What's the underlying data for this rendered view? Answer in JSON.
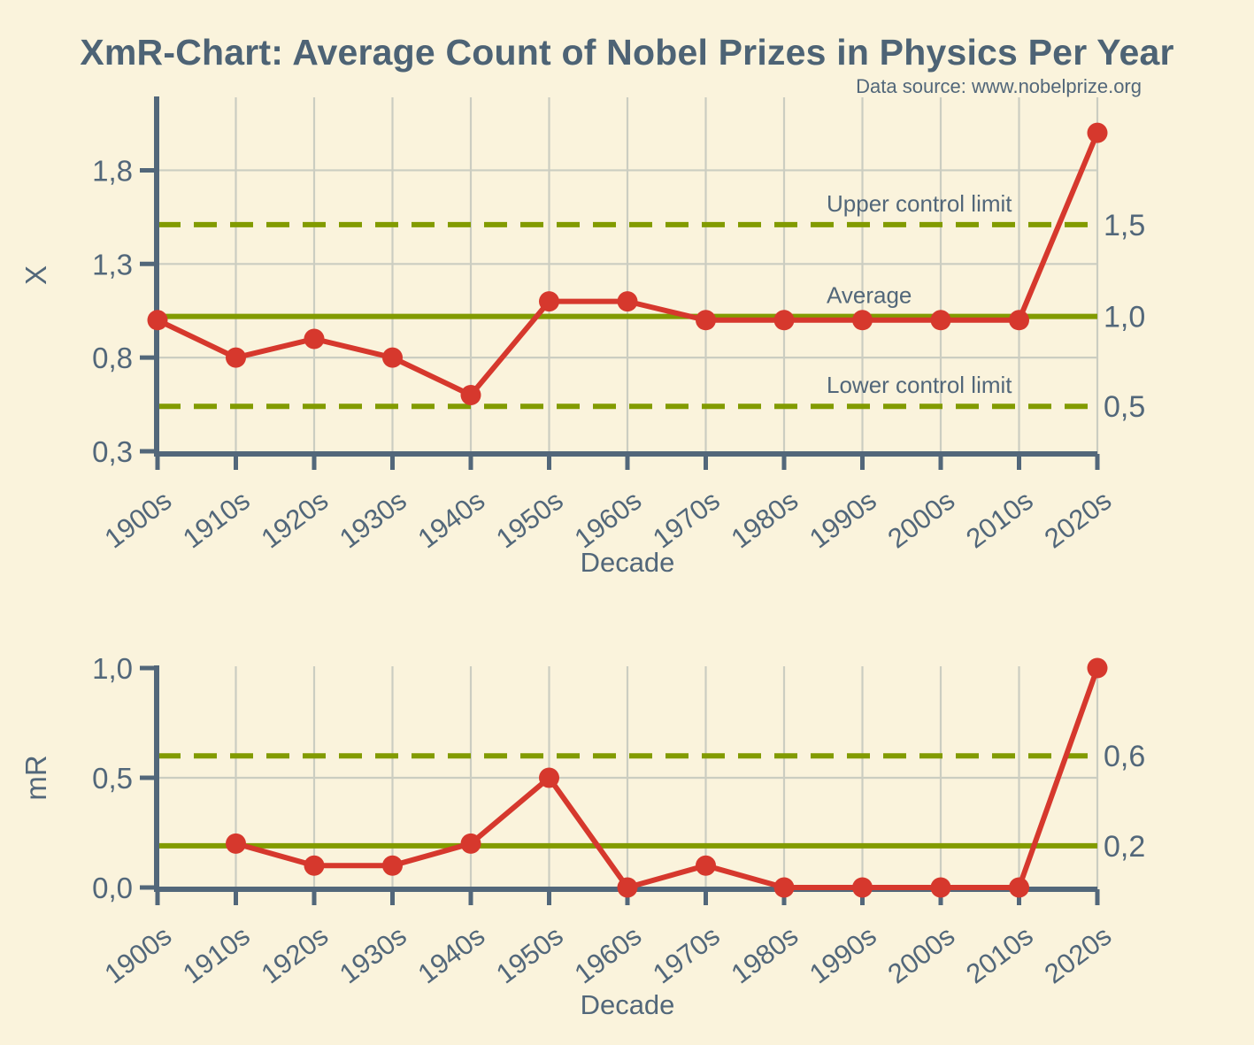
{
  "header": {
    "title": "XmR-Chart: Average Count of Nobel Prizes in Physics Per Year",
    "data_source": "Data source: www.nobelprize.org"
  },
  "colors": {
    "background": "#faf3dc",
    "text": "#52677a",
    "series_red": "#d6382d",
    "control_olive": "#829b00",
    "grid": "#cbcdc1"
  },
  "chart_data": [
    {
      "type": "line",
      "name": "x-chart",
      "ylabel": "X",
      "xlabel": "Decade",
      "legend": "none",
      "grid": true,
      "categories": [
        "1900s",
        "1910s",
        "1920s",
        "1930s",
        "1940s",
        "1950s",
        "1960s",
        "1970s",
        "1980s",
        "1990s",
        "2000s",
        "2010s",
        "2020s"
      ],
      "values": [
        1.0,
        0.8,
        0.9,
        0.8,
        0.6,
        1.1,
        1.1,
        1.0,
        1.0,
        1.0,
        1.0,
        1.0,
        2.0
      ],
      "ylim": [
        0.3,
        2.18
      ],
      "yticks": [
        {
          "value": 0.3,
          "label": "0,3"
        },
        {
          "value": 0.8,
          "label": "0,8"
        },
        {
          "value": 1.3,
          "label": "1,3"
        },
        {
          "value": 1.8,
          "label": "1,8"
        }
      ],
      "gridlines_y": [
        0.8,
        1.3,
        1.8
      ],
      "control_lines": [
        {
          "name": "upper-control-limit",
          "label": "Upper control limit",
          "value": 1.51,
          "value_label": "1,5",
          "dashed": true
        },
        {
          "name": "average",
          "label": "Average",
          "value": 1.02,
          "value_label": "1,0",
          "dashed": false
        },
        {
          "name": "lower-control-limit",
          "label": "Lower control limit",
          "value": 0.54,
          "value_label": "0,5",
          "dashed": true
        }
      ]
    },
    {
      "type": "line",
      "name": "mr-chart",
      "ylabel": "mR",
      "xlabel": "Decade",
      "legend": "none",
      "grid": true,
      "categories": [
        "1900s",
        "1910s",
        "1920s",
        "1930s",
        "1940s",
        "1950s",
        "1960s",
        "1970s",
        "1980s",
        "1990s",
        "2000s",
        "2010s",
        "2020s"
      ],
      "values": [
        null,
        0.2,
        0.1,
        0.1,
        0.2,
        0.5,
        0.0,
        0.1,
        0.0,
        0.0,
        0.0,
        0.0,
        1.0
      ],
      "ylim": [
        0.0,
        1.0
      ],
      "yticks": [
        {
          "value": 0.0,
          "label": "0,0"
        },
        {
          "value": 0.5,
          "label": "0,5"
        },
        {
          "value": 1.0,
          "label": "1,0"
        }
      ],
      "gridlines_y": [
        0.5
      ],
      "control_lines": [
        {
          "name": "upper-control-limit",
          "label": "",
          "value": 0.6,
          "value_label": "0,6",
          "dashed": true
        },
        {
          "name": "average",
          "label": "",
          "value": 0.19,
          "value_label": "0,2",
          "dashed": false
        }
      ]
    }
  ]
}
